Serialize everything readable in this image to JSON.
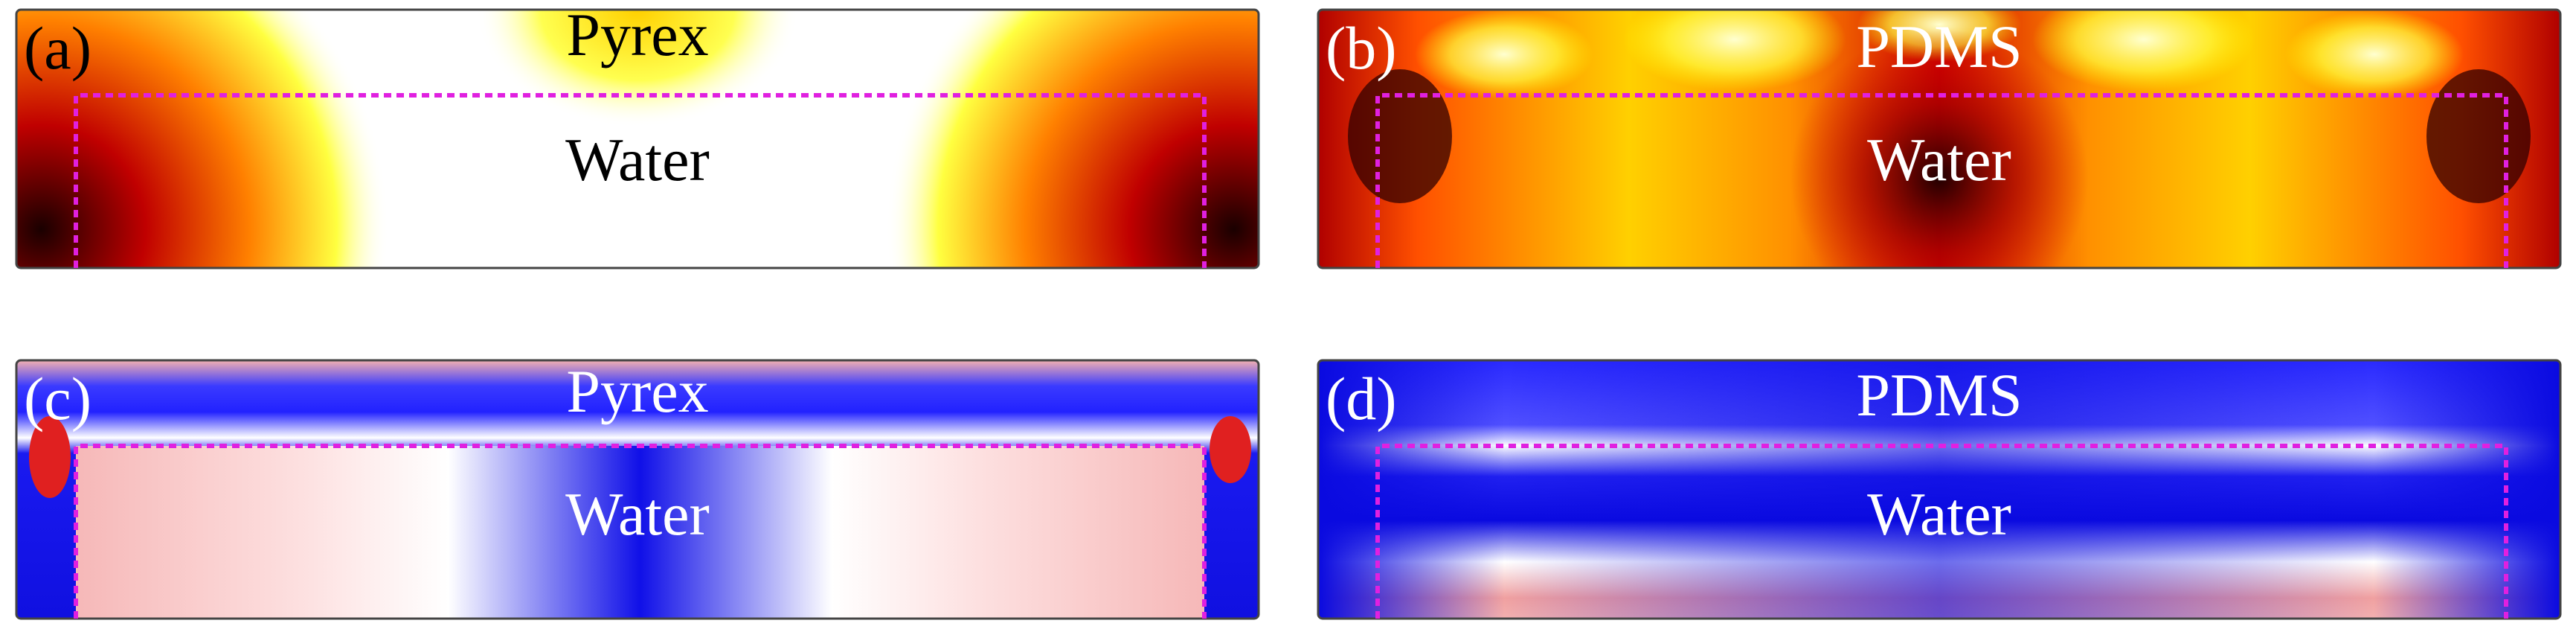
{
  "panels": [
    {
      "label": "(a)",
      "material": "Pyrex",
      "fluid": "Water"
    },
    {
      "label": "(b)",
      "material": "PDMS",
      "fluid": "Water"
    },
    {
      "label": "(c)",
      "material": "Pyrex",
      "fluid": "Water"
    },
    {
      "label": "(d)",
      "material": "PDMS",
      "fluid": "Water"
    }
  ]
}
